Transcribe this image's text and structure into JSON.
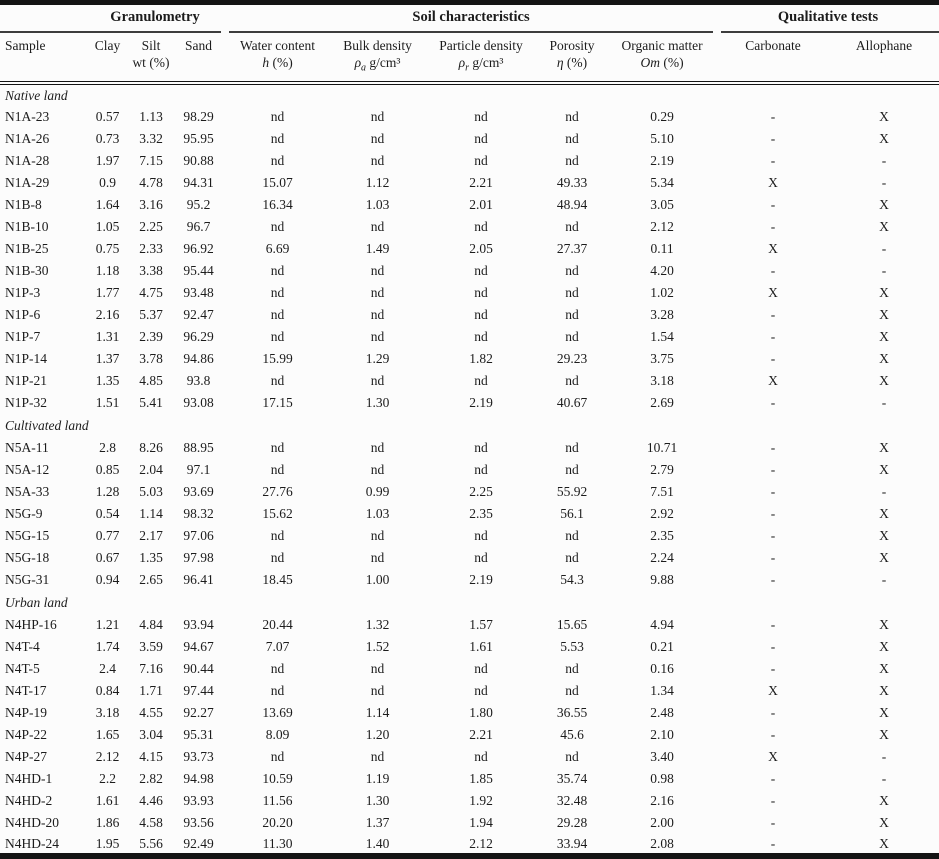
{
  "colors": {
    "text": "#1c1c1c",
    "rule": "#141414",
    "background": "#fcfcfc"
  },
  "table": {
    "groups": [
      {
        "label": "Granulometry"
      },
      {
        "label": "Soil characteristics"
      },
      {
        "label": "Qualitative tests"
      }
    ],
    "columns": [
      {
        "line1": "Sample",
        "sym": "",
        "sub": "",
        "rest": ""
      },
      {
        "line1": "Clay",
        "sym": "",
        "sub": "",
        "rest": ""
      },
      {
        "line1": "Silt",
        "sym": "",
        "sub": "",
        "rest": "wt (%)"
      },
      {
        "line1": "Sand",
        "sym": "",
        "sub": "",
        "rest": ""
      },
      {
        "line1": "Water content",
        "sym": "h",
        "sub": "",
        "rest": " (%)"
      },
      {
        "line1": "Bulk density",
        "sym": "ρ",
        "sub": "a",
        "rest": " g/cm³"
      },
      {
        "line1": "Particle density",
        "sym": "ρ",
        "sub": "r",
        "rest": " g/cm³"
      },
      {
        "line1": "Porosity",
        "sym": "η",
        "sub": "",
        "rest": " (%)"
      },
      {
        "line1": "Organic matter",
        "sym": "Om",
        "sub": "",
        "rest": " (%)"
      },
      {
        "line1": "Carbonate",
        "sym": "",
        "sub": "",
        "rest": ""
      },
      {
        "line1": "Allophane",
        "sym": "",
        "sub": "",
        "rest": ""
      }
    ],
    "sections": [
      {
        "title": "Native land",
        "rows": [
          [
            "N1A-23",
            "0.57",
            "1.13",
            "98.29",
            "nd",
            "nd",
            "nd",
            "nd",
            "0.29",
            "-",
            "X"
          ],
          [
            "N1A-26",
            "0.73",
            "3.32",
            "95.95",
            "nd",
            "nd",
            "nd",
            "nd",
            "5.10",
            "-",
            "X"
          ],
          [
            "N1A-28",
            "1.97",
            "7.15",
            "90.88",
            "nd",
            "nd",
            "nd",
            "nd",
            "2.19",
            "-",
            "-"
          ],
          [
            "N1A-29",
            "0.9",
            "4.78",
            "94.31",
            "15.07",
            "1.12",
            "2.21",
            "49.33",
            "5.34",
            "X",
            "-"
          ],
          [
            "N1B-8",
            "1.64",
            "3.16",
            "95.2",
            "16.34",
            "1.03",
            "2.01",
            "48.94",
            "3.05",
            "-",
            "X"
          ],
          [
            "N1B-10",
            "1.05",
            "2.25",
            "96.7",
            "nd",
            "nd",
            "nd",
            "nd",
            "2.12",
            "-",
            "X"
          ],
          [
            "N1B-25",
            "0.75",
            "2.33",
            "96.92",
            "6.69",
            "1.49",
            "2.05",
            "27.37",
            "0.11",
            "X",
            "-"
          ],
          [
            "N1B-30",
            "1.18",
            "3.38",
            "95.44",
            "nd",
            "nd",
            "nd",
            "nd",
            "4.20",
            "-",
            "-"
          ],
          [
            "N1P-3",
            "1.77",
            "4.75",
            "93.48",
            "nd",
            "nd",
            "nd",
            "nd",
            "1.02",
            "X",
            "X"
          ],
          [
            "N1P-6",
            "2.16",
            "5.37",
            "92.47",
            "nd",
            "nd",
            "nd",
            "nd",
            "3.28",
            "-",
            "X"
          ],
          [
            "N1P-7",
            "1.31",
            "2.39",
            "96.29",
            "nd",
            "nd",
            "nd",
            "nd",
            "1.54",
            "-",
            "X"
          ],
          [
            "N1P-14",
            "1.37",
            "3.78",
            "94.86",
            "15.99",
            "1.29",
            "1.82",
            "29.23",
            "3.75",
            "-",
            "X"
          ],
          [
            "N1P-21",
            "1.35",
            "4.85",
            "93.8",
            "nd",
            "nd",
            "nd",
            "nd",
            "3.18",
            "X",
            "X"
          ],
          [
            "N1P-32",
            "1.51",
            "5.41",
            "93.08",
            "17.15",
            "1.30",
            "2.19",
            "40.67",
            "2.69",
            "-",
            "-"
          ]
        ]
      },
      {
        "title": "Cultivated land",
        "rows": [
          [
            "N5A-11",
            "2.8",
            "8.26",
            "88.95",
            "nd",
            "nd",
            "nd",
            "nd",
            "10.71",
            "-",
            "X"
          ],
          [
            "N5A-12",
            "0.85",
            "2.04",
            "97.1",
            "nd",
            "nd",
            "nd",
            "nd",
            "2.79",
            "-",
            "X"
          ],
          [
            "N5A-33",
            "1.28",
            "5.03",
            "93.69",
            "27.76",
            "0.99",
            "2.25",
            "55.92",
            "7.51",
            "-",
            "-"
          ],
          [
            "N5G-9",
            "0.54",
            "1.14",
            "98.32",
            "15.62",
            "1.03",
            "2.35",
            "56.1",
            "2.92",
            "-",
            "X"
          ],
          [
            "N5G-15",
            "0.77",
            "2.17",
            "97.06",
            "nd",
            "nd",
            "nd",
            "nd",
            "2.35",
            "-",
            "X"
          ],
          [
            "N5G-18",
            "0.67",
            "1.35",
            "97.98",
            "nd",
            "nd",
            "nd",
            "nd",
            "2.24",
            "-",
            "X"
          ],
          [
            "N5G-31",
            "0.94",
            "2.65",
            "96.41",
            "18.45",
            "1.00",
            "2.19",
            "54.3",
            "9.88",
            "-",
            "-"
          ]
        ]
      },
      {
        "title": "Urban land",
        "rows": [
          [
            "N4HP-16",
            "1.21",
            "4.84",
            "93.94",
            "20.44",
            "1.32",
            "1.57",
            "15.65",
            "4.94",
            "-",
            "X"
          ],
          [
            "N4T-4",
            "1.74",
            "3.59",
            "94.67",
            "7.07",
            "1.52",
            "1.61",
            "5.53",
            "0.21",
            "-",
            "X"
          ],
          [
            "N4T-5",
            "2.4",
            "7.16",
            "90.44",
            "nd",
            "nd",
            "nd",
            "nd",
            "0.16",
            "-",
            "X"
          ],
          [
            "N4T-17",
            "0.84",
            "1.71",
            "97.44",
            "nd",
            "nd",
            "nd",
            "nd",
            "1.34",
            "X",
            "X"
          ],
          [
            "N4P-19",
            "3.18",
            "4.55",
            "92.27",
            "13.69",
            "1.14",
            "1.80",
            "36.55",
            "2.48",
            "-",
            "X"
          ],
          [
            "N4P-22",
            "1.65",
            "3.04",
            "95.31",
            "8.09",
            "1.20",
            "2.21",
            "45.6",
            "2.10",
            "-",
            "X"
          ],
          [
            "N4P-27",
            "2.12",
            "4.15",
            "93.73",
            "nd",
            "nd",
            "nd",
            "nd",
            "3.40",
            "X",
            "-"
          ],
          [
            "N4HD-1",
            "2.2",
            "2.82",
            "94.98",
            "10.59",
            "1.19",
            "1.85",
            "35.74",
            "0.98",
            "-",
            "-"
          ],
          [
            "N4HD-2",
            "1.61",
            "4.46",
            "93.93",
            "11.56",
            "1.30",
            "1.92",
            "32.48",
            "2.16",
            "-",
            "X"
          ],
          [
            "N4HD-20",
            "1.86",
            "4.58",
            "93.56",
            "20.20",
            "1.37",
            "1.94",
            "29.28",
            "2.00",
            "-",
            "X"
          ],
          [
            "N4HD-24",
            "1.95",
            "5.56",
            "92.49",
            "11.30",
            "1.40",
            "2.12",
            "33.94",
            "2.08",
            "-",
            "X"
          ]
        ]
      }
    ]
  }
}
